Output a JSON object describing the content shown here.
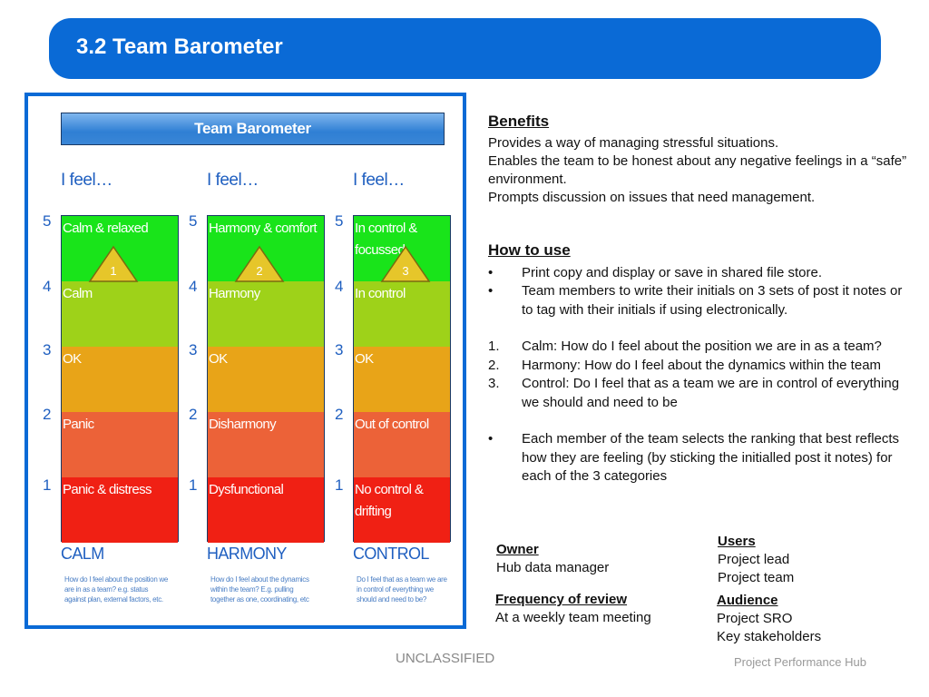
{
  "slide": {
    "title": "3.2 Team Barometer"
  },
  "figure": {
    "header": "Team Barometer",
    "columns": [
      {
        "feel": "I feel…",
        "levels": [
          "5",
          "4",
          "3",
          "2",
          "1"
        ],
        "segments": [
          "Calm & relaxed",
          "Calm",
          "OK",
          "Panic",
          "Panic & distress"
        ],
        "marker": "1",
        "category": "CALM",
        "description": "How do I feel about the position we are in as a team? e.g. status against plan, external factors, etc."
      },
      {
        "feel": "I feel…",
        "levels": [
          "5",
          "4",
          "3",
          "2",
          "1"
        ],
        "segments": [
          "Harmony & comfort",
          "Harmony",
          "OK",
          "Disharmony",
          "Dysfunctional"
        ],
        "marker": "2",
        "category": "HARMONY",
        "description": "How do I feel about the dynamics within the team? E.g. pulling together as one, coordinating, etc"
      },
      {
        "feel": "I feel…",
        "levels": [
          "5",
          "4",
          "3",
          "2",
          "1"
        ],
        "segments": [
          "In control & focussed",
          "In control",
          "OK",
          "Out of control",
          "No control & drifting"
        ],
        "marker": "3",
        "category": "CONTROL",
        "description": "Do I feel that as a team we are in control of everything we should and need to be?"
      }
    ],
    "colors": {
      "level5": "#19e41a",
      "level4": "#9ed219",
      "level3": "#e8a418",
      "level2": "#ec6238",
      "level1": "#f02014",
      "marker": "#e6c62a"
    }
  },
  "benefits": {
    "heading": "Benefits",
    "lines": [
      "Provides a way of managing stressful situations.",
      "Enables the team to be honest about any negative feelings in a “safe” environment.",
      "Prompts discussion on issues that need management."
    ]
  },
  "how_to_use": {
    "heading": "How to use",
    "bullets": [
      "Print copy and display or save in shared file store.",
      "Team members to write their initials on 3 sets of post it notes or to tag with their initials if using electronically."
    ],
    "numbered": [
      {
        "num": "1.",
        "text": "Calm: How do I feel about the position we are in as a team?"
      },
      {
        "num": "2.",
        "text": "Harmony: How do I feel about the dynamics within the team"
      },
      {
        "num": "3.",
        "text": "Control: Do I feel that as a team we are in control of everything we should and need to be"
      }
    ],
    "final_bullet": "Each member of the team selects the ranking that best reflects how they are feeling (by sticking the initialled post it notes) for each of the 3 categories",
    "bullet_char": "•"
  },
  "owner": {
    "heading": "Owner",
    "value": "Hub data manager"
  },
  "users": {
    "heading": "Users",
    "values": [
      "Project lead",
      "Project team"
    ]
  },
  "frequency": {
    "heading": "Frequency of review",
    "value": "At a weekly team meeting"
  },
  "audience": {
    "heading": "Audience",
    "values": [
      "Project SRO",
      "Key stakeholders"
    ]
  },
  "footer": {
    "classification": "UNCLASSIFIED",
    "brand": "Project Performance Hub"
  }
}
